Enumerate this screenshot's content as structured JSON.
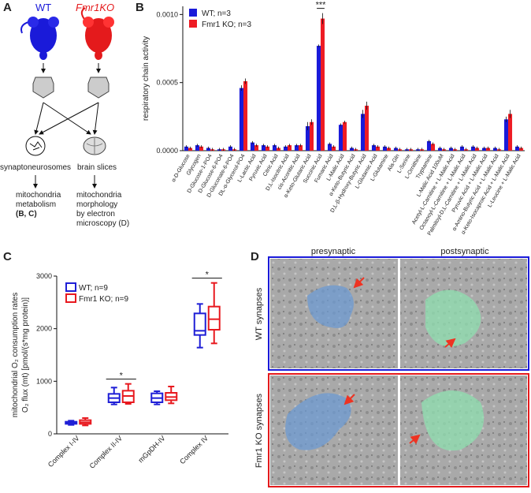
{
  "panel_labels": [
    "A",
    "B",
    "C",
    "D"
  ],
  "diagram": {
    "wt": "WT",
    "ko": "Fmr1KO",
    "left_node": "synaptoneurosomes",
    "right_node": "brain slices",
    "left_outcome": [
      "mitochondria",
      "metabolism",
      "(B, C)"
    ],
    "right_outcome": [
      "mitochondria",
      "morphology",
      "by electron",
      "microscopy (D)"
    ]
  },
  "chart_data": [
    {
      "type": "bar",
      "y_label": "respiratory chain activity",
      "categories": [
        "α-D-Glucose",
        "Glycogen",
        "D-Glucose-1-PO4",
        "D-Glucose-6-PO4",
        "D-Gluconate-6-PO4",
        "DL-α-Glycerol-PO4",
        "L-Lactic Acid",
        "Pyruvic Acid",
        "Citric Acid",
        "D,L-Isocitric Acid",
        "cis-Aconitic Acid",
        "α-Keto-Glutaric Acid",
        "Succinic Acid",
        "Fumaric Acid",
        "L-Malic Acid",
        "α-Keto-Butyric Acid",
        "D,L-β-Hydroxy-Butyric Acid",
        "L-Glutamic Acid",
        "L-Glutamine",
        "Ala-Gln",
        "L-Serine",
        "L-Ornithine",
        "Tryptamine",
        "L-Malic Acid 100uM",
        "Acetyl-L-Carnitine + L-Malic Acid",
        "Octanoyl-L-Carnitine + L-Malic Acid",
        "Palmitoyl-D,L-Carnitine + L-Malic Acid",
        "Pyruvic Acid + L-Malic Acid",
        "α-Amino-Butyric Acid + L-Malic Acid",
        "α-Keto-Isocaproic Acid + L-Malic Acid",
        "L-Leucine + L-Malic Acid"
      ],
      "series": [
        {
          "name": "WT; n=3",
          "color": "#1a1ad9",
          "values": [
            3e-05,
            4e-05,
            2e-05,
            1e-05,
            3e-05,
            0.00046,
            6e-05,
            4e-05,
            4e-05,
            3e-05,
            4e-05,
            0.00018,
            0.00077,
            5e-05,
            0.00019,
            2e-05,
            0.00027,
            4e-05,
            3e-05,
            2e-05,
            1e-05,
            1e-05,
            7e-05,
            2e-05,
            2e-05,
            3e-05,
            3e-05,
            2e-05,
            2e-05,
            0.00023,
            3e-05
          ],
          "errors": [
            1e-05,
            1e-05,
            1e-05,
            1e-05,
            1e-05,
            2e-05,
            1e-05,
            1e-05,
            1e-05,
            1e-05,
            1e-05,
            3e-05,
            1e-05,
            1e-05,
            1e-05,
            1e-05,
            3e-05,
            1e-05,
            1e-05,
            1e-05,
            1e-05,
            1e-05,
            1e-05,
            1e-05,
            1e-05,
            1e-05,
            1e-05,
            1e-05,
            1e-05,
            2e-05,
            1e-05
          ]
        },
        {
          "name": "Fmr1 KO; n=3",
          "color": "#ee1c24",
          "values": [
            2e-05,
            3e-05,
            1e-05,
            1e-05,
            1e-05,
            0.00051,
            4e-05,
            3e-05,
            2e-05,
            4e-05,
            4e-05,
            0.00021,
            0.00097,
            3e-05,
            0.00021,
            1e-05,
            0.00033,
            3e-05,
            2e-05,
            1e-05,
            1e-05,
            1e-05,
            5e-05,
            1e-05,
            1e-05,
            1e-05,
            2e-05,
            2e-05,
            1e-05,
            0.00027,
            2e-05
          ],
          "errors": [
            1e-05,
            1e-05,
            1e-05,
            1e-05,
            1e-05,
            2e-05,
            1e-05,
            1e-05,
            1e-05,
            1e-05,
            1e-05,
            2e-05,
            4e-05,
            1e-05,
            1e-05,
            1e-05,
            3e-05,
            1e-05,
            1e-05,
            1e-05,
            1e-05,
            1e-05,
            1e-05,
            1e-05,
            1e-05,
            1e-05,
            1e-05,
            1e-05,
            1e-05,
            3e-05,
            1e-05
          ]
        }
      ],
      "ylim": [
        0,
        0.00106
      ],
      "yticks": [
        {
          "value": 0,
          "label": "0.0000"
        },
        {
          "value": 0.0005,
          "label": "0.0005"
        },
        {
          "value": 0.001,
          "label": "0.0010"
        }
      ],
      "annotations": [
        {
          "text": "***",
          "category": "Succinic Acid"
        }
      ],
      "legend": "upper left"
    },
    {
      "type": "box",
      "y_label": [
        "mitochondrial O₂ consumption rates",
        "O₂ flux (mt) [pmol/(s*mg protein)]"
      ],
      "categories": [
        "Complex I-IV",
        "Complex II-IV",
        "mGpDH-IV",
        "Complex IV"
      ],
      "series": [
        {
          "name": "WT; n=9",
          "color": "#1f1fd6",
          "values": [
            [
              170,
              190,
              210,
              230,
              250
            ],
            [
              560,
              600,
              680,
              760,
              880
            ],
            [
              560,
              600,
              680,
              770,
              810
            ],
            [
              1640,
              1880,
              1960,
              2290,
              2470
            ]
          ]
        },
        {
          "name": "Fmr1 KO; n=9",
          "color": "#e8191f",
          "values": [
            [
              160,
              190,
              220,
              260,
              300
            ],
            [
              570,
              600,
              720,
              820,
              950
            ],
            [
              580,
              640,
              700,
              780,
              900
            ],
            [
              1720,
              1980,
              2180,
              2420,
              2870
            ]
          ]
        }
      ],
      "ylim": [
        0,
        3000
      ],
      "yticks": [
        0,
        1000,
        2000,
        3000
      ],
      "annotations": [
        {
          "text": "*",
          "category": "Complex II-IV"
        },
        {
          "text": "*",
          "category": "Complex IV"
        }
      ],
      "legend": "upper left"
    }
  ],
  "micrographs": {
    "columns": [
      "presynaptic",
      "postsynaptic"
    ],
    "rows": [
      "WT synapses",
      "Fmr1 KO synapses"
    ]
  }
}
